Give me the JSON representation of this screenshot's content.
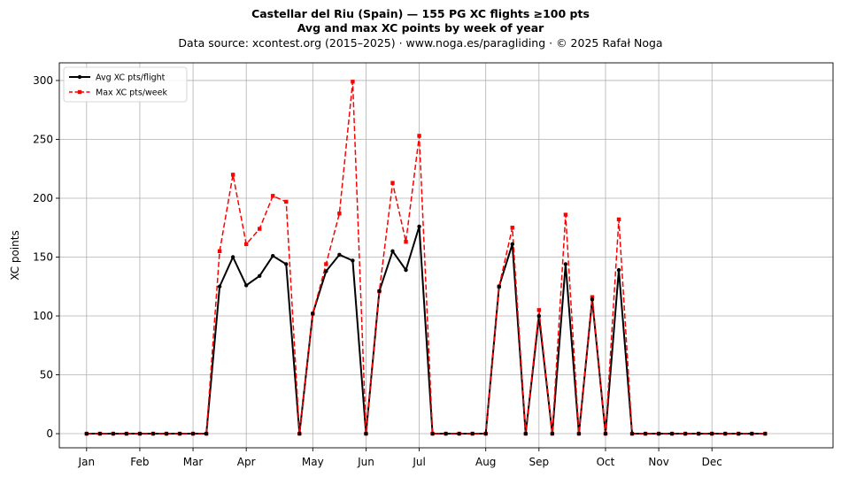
{
  "header": {
    "title_line1": "Castellar del Riu (Spain)  —  155 PG XC flights ≥100 pts",
    "title_line2": "Avg and max XC points by week of year",
    "subtitle": "Data source: xcontest.org (2015–2025)  ·  www.noga.es/paragliding  ·  © 2025 Rafał Noga"
  },
  "chart_data": {
    "type": "line",
    "ylabel": "XC points",
    "ylim": [
      -12,
      315
    ],
    "xlim": [
      0.95,
      59.1
    ],
    "yticks": [
      0,
      50,
      100,
      150,
      200,
      250,
      300
    ],
    "grid": true,
    "legend_position": "top-left",
    "month_ticks": [
      {
        "label": "Jan",
        "week": 3
      },
      {
        "label": "Feb",
        "week": 7
      },
      {
        "label": "Mar",
        "week": 11
      },
      {
        "label": "Apr",
        "week": 15
      },
      {
        "label": "May",
        "week": 20
      },
      {
        "label": "Jun",
        "week": 24
      },
      {
        "label": "Jul",
        "week": 28
      },
      {
        "label": "Aug",
        "week": 33
      },
      {
        "label": "Sep",
        "week": 37
      },
      {
        "label": "Oct",
        "week": 42
      },
      {
        "label": "Nov",
        "week": 46
      },
      {
        "label": "Dec",
        "week": 50
      }
    ],
    "x": [
      3,
      4,
      5,
      6,
      7,
      8,
      9,
      10,
      11,
      12,
      13,
      14,
      15,
      16,
      17,
      18,
      19,
      20,
      21,
      22,
      23,
      24,
      25,
      26,
      27,
      28,
      29,
      30,
      31,
      32,
      33,
      34,
      35,
      36,
      37,
      38,
      39,
      40,
      41,
      42,
      43,
      44,
      45,
      46,
      47,
      48,
      49,
      50,
      51,
      52,
      53,
      54
    ],
    "series": [
      {
        "name": "Avg XC pts/flight",
        "color": "#000000",
        "values": [
          0,
          0,
          0,
          0,
          0,
          0,
          0,
          0,
          0,
          0,
          125,
          150,
          126,
          134,
          151,
          144,
          0,
          102,
          138,
          152,
          147,
          0,
          121,
          155,
          139,
          176,
          0,
          0,
          0,
          0,
          0,
          125,
          161,
          0,
          100,
          0,
          144,
          0,
          114,
          0,
          139,
          0,
          0,
          0,
          0,
          0,
          0,
          0,
          0,
          0,
          0,
          0
        ]
      },
      {
        "name": "Max XC pts/week",
        "color": "#ff0000",
        "values": [
          0,
          0,
          0,
          0,
          0,
          0,
          0,
          0,
          0,
          0,
          155,
          220,
          161,
          174,
          202,
          197,
          0,
          102,
          144,
          187,
          299,
          0,
          121,
          213,
          163,
          253,
          0,
          0,
          0,
          0,
          0,
          125,
          175,
          0,
          105,
          0,
          186,
          0,
          116,
          0,
          182,
          0,
          0,
          0,
          0,
          0,
          0,
          0,
          0,
          0,
          0,
          0
        ]
      }
    ]
  }
}
